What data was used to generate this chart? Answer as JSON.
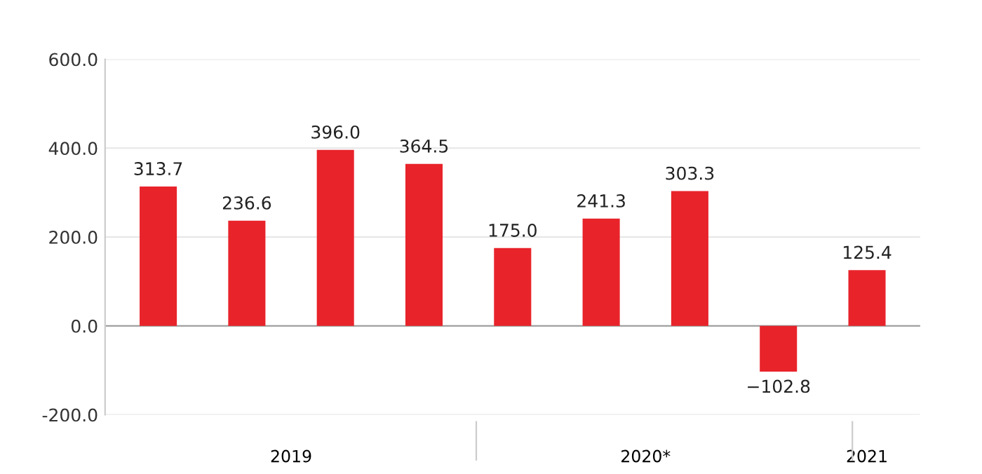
{
  "chart_data": {
    "type": "bar",
    "categories": [
      null,
      null,
      null,
      null,
      null,
      null,
      null,
      null,
      null
    ],
    "values": [
      313.7,
      236.6,
      396.0,
      364.5,
      175.0,
      241.3,
      303.3,
      -102.8,
      125.4
    ],
    "color": "#e8232a",
    "ylim": [
      -200,
      600
    ],
    "yticks": [
      {
        "value": -200,
        "label": "-200.0"
      },
      {
        "value": 0,
        "label": "0.0"
      },
      {
        "value": 200,
        "label": "200.0"
      },
      {
        "value": 400,
        "label": "400.0"
      },
      {
        "value": 600,
        "label": "600.0"
      }
    ],
    "grid": "y",
    "value_labels": [
      "313.7",
      "236.6",
      "396.0",
      "364.5",
      "175.0",
      "241.3",
      "303.3",
      "−102.8",
      "125.4"
    ],
    "annotations": [
      "2019",
      "2020*",
      "2021"
    ]
  }
}
